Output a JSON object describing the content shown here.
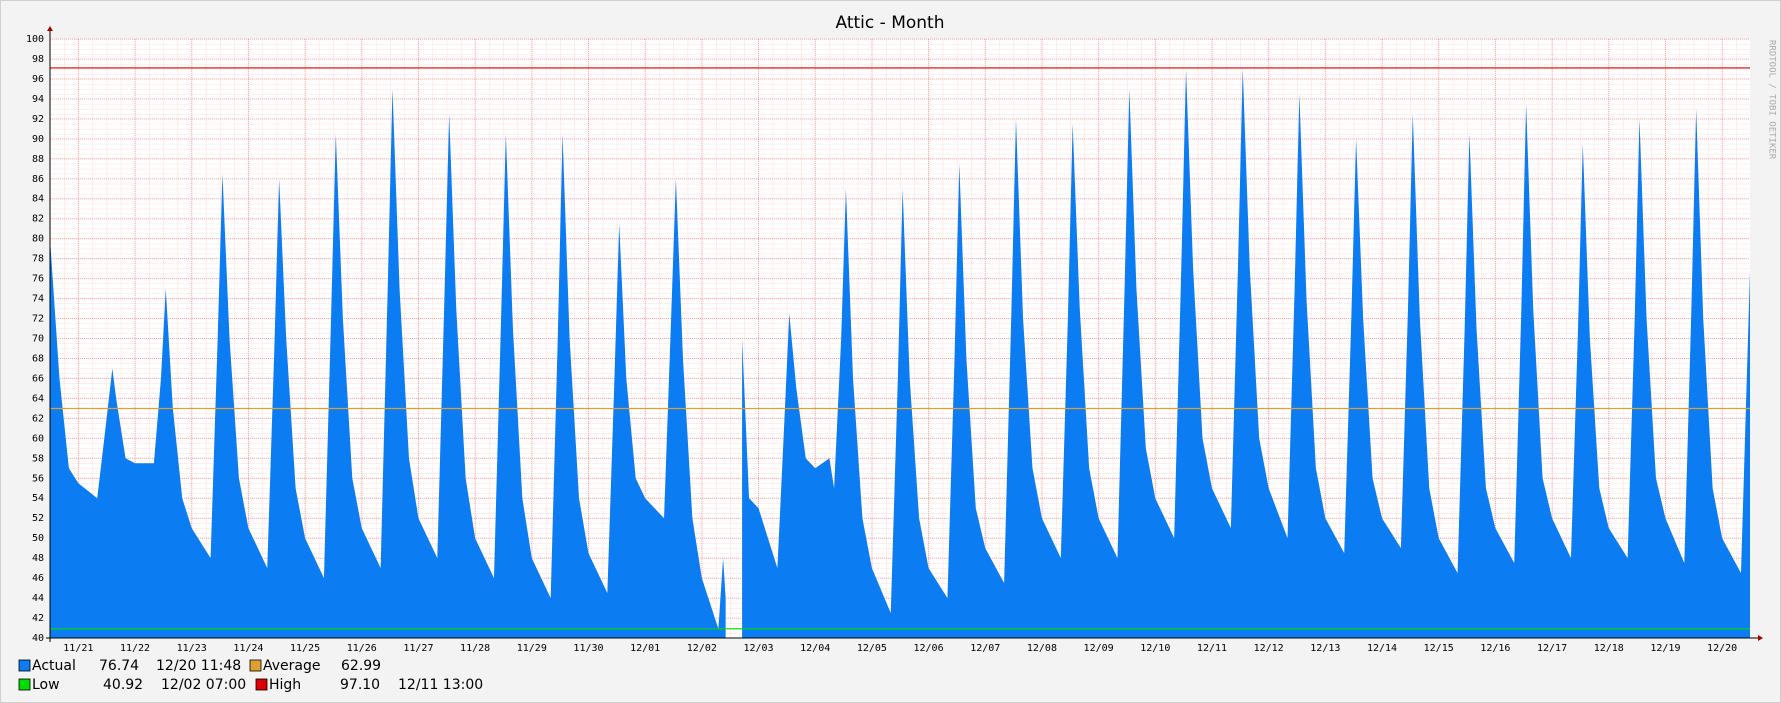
{
  "chart_data": {
    "type": "area",
    "title": "Attic - Month",
    "watermark": "RRDTOOL / TOBI OETIKER",
    "x": [
      -0.5,
      -0.333,
      -0.167,
      0,
      0.333,
      0.458,
      0.6,
      0.667,
      0.833,
      1,
      1.333,
      1.458,
      1.542,
      1.667,
      1.833,
      2,
      2.333,
      2.458,
      2.542,
      2.667,
      2.833,
      3,
      3.333,
      3.458,
      3.542,
      3.667,
      3.833,
      4,
      4.333,
      4.458,
      4.542,
      4.667,
      4.833,
      5,
      5.333,
      5.458,
      5.542,
      5.667,
      5.833,
      6,
      6.333,
      6.458,
      6.542,
      6.667,
      6.833,
      7,
      7.333,
      7.458,
      7.542,
      7.667,
      7.833,
      8,
      8.333,
      8.458,
      8.542,
      8.667,
      8.833,
      9,
      9.333,
      9.458,
      9.542,
      9.667,
      9.833,
      10,
      10.333,
      10.458,
      10.542,
      10.667,
      10.833,
      11,
      11.292,
      11.375,
      11.42,
      11.5,
      11.71,
      11.833,
      12,
      12.333,
      12.458,
      12.542,
      12.667,
      12.833,
      13,
      13.25,
      13.333,
      13.458,
      13.542,
      13.667,
      13.833,
      14,
      14.333,
      14.458,
      14.542,
      14.667,
      14.833,
      15,
      15.333,
      15.458,
      15.542,
      15.667,
      15.833,
      16,
      16.333,
      16.458,
      16.542,
      16.667,
      16.833,
      17,
      17.333,
      17.458,
      17.542,
      17.667,
      17.833,
      18,
      18.333,
      18.458,
      18.542,
      18.667,
      18.833,
      19,
      19.333,
      19.458,
      19.542,
      19.667,
      19.833,
      20,
      20.333,
      20.458,
      20.542,
      20.667,
      20.833,
      21,
      21.333,
      21.458,
      21.542,
      21.667,
      21.833,
      22,
      22.333,
      22.458,
      22.542,
      22.667,
      22.833,
      23,
      23.333,
      23.458,
      23.542,
      23.667,
      23.833,
      24,
      24.333,
      24.458,
      24.542,
      24.667,
      24.833,
      25,
      25.333,
      25.458,
      25.542,
      25.667,
      25.833,
      26,
      26.333,
      26.458,
      26.542,
      26.667,
      26.833,
      27,
      27.333,
      27.458,
      27.542,
      27.667,
      27.833,
      28,
      28.333,
      28.458,
      28.542,
      28.667,
      28.833,
      29,
      29.333,
      29.492
    ],
    "series": [
      {
        "name": "Actual",
        "color": "#0c7cf2",
        "current_value": 76.74,
        "current_time": "12/20 11:48",
        "values": [
          80,
          66,
          57,
          55.5,
          54,
          60,
          67,
          64,
          58,
          57.5,
          57.5,
          66,
          75,
          63,
          54,
          51,
          48,
          70,
          86.5,
          70,
          56,
          51,
          47,
          69,
          86,
          70,
          55,
          50,
          46,
          72,
          90.5,
          72,
          56,
          51,
          47,
          75,
          95,
          75,
          58,
          52,
          48,
          74,
          92.5,
          73,
          56,
          50,
          46,
          72,
          90.5,
          71,
          54,
          48,
          44,
          70,
          90.5,
          70,
          54,
          48.5,
          44.5,
          66,
          81.5,
          66,
          56,
          54,
          52,
          72,
          86,
          68,
          52,
          46,
          40.92,
          48,
          44,
          null,
          70,
          54,
          53,
          47,
          62,
          72.5,
          65,
          58,
          57,
          58,
          55,
          70,
          85,
          66,
          52,
          47,
          42.5,
          66,
          85,
          66,
          52,
          47,
          44,
          68,
          87.5,
          68,
          53,
          49,
          45.5,
          72,
          92,
          72,
          57,
          52,
          48,
          72,
          91.5,
          73,
          57,
          52,
          48,
          75,
          95,
          75,
          59,
          54,
          50,
          77,
          97,
          77,
          60,
          55,
          51,
          77,
          97.1,
          77,
          60,
          55,
          50,
          75,
          94.5,
          74,
          57,
          52,
          48.5,
          72,
          90,
          72,
          56,
          52,
          49,
          73,
          92.5,
          72,
          55,
          50,
          46.5,
          71,
          90.5,
          71,
          55,
          51,
          47.5,
          73,
          93.5,
          73,
          56,
          52,
          48,
          71,
          89.5,
          70,
          55,
          51,
          48,
          72,
          92,
          72,
          56,
          52,
          47.5,
          73,
          93,
          72,
          55,
          50,
          46.5,
          76.74
        ]
      }
    ],
    "reference_lines": [
      {
        "name": "Average",
        "color": "#e0a030",
        "value": 62.99
      },
      {
        "name": "Low",
        "color": "#00dd00",
        "value": 40.92,
        "time": "12/02 07:00"
      },
      {
        "name": "High",
        "color": "#dd0000",
        "value": 97.1,
        "value_label": "97.10",
        "time": "12/11 13:00"
      }
    ],
    "xlim": [
      -0.5,
      29.492
    ],
    "xticks": [
      {
        "value": 0,
        "label": "11/21"
      },
      {
        "value": 1,
        "label": "11/22"
      },
      {
        "value": 2,
        "label": "11/23"
      },
      {
        "value": 3,
        "label": "11/24"
      },
      {
        "value": 4,
        "label": "11/25"
      },
      {
        "value": 5,
        "label": "11/26"
      },
      {
        "value": 6,
        "label": "11/27"
      },
      {
        "value": 7,
        "label": "11/28"
      },
      {
        "value": 8,
        "label": "11/29"
      },
      {
        "value": 9,
        "label": "11/30"
      },
      {
        "value": 10,
        "label": "12/01"
      },
      {
        "value": 11,
        "label": "12/02"
      },
      {
        "value": 12,
        "label": "12/03"
      },
      {
        "value": 13,
        "label": "12/04"
      },
      {
        "value": 14,
        "label": "12/05"
      },
      {
        "value": 15,
        "label": "12/06"
      },
      {
        "value": 16,
        "label": "12/07"
      },
      {
        "value": 17,
        "label": "12/08"
      },
      {
        "value": 18,
        "label": "12/09"
      },
      {
        "value": 19,
        "label": "12/10"
      },
      {
        "value": 20,
        "label": "12/11"
      },
      {
        "value": 21,
        "label": "12/12"
      },
      {
        "value": 22,
        "label": "12/13"
      },
      {
        "value": 23,
        "label": "12/14"
      },
      {
        "value": 24,
        "label": "12/15"
      },
      {
        "value": 25,
        "label": "12/16"
      },
      {
        "value": 26,
        "label": "12/17"
      },
      {
        "value": 27,
        "label": "12/18"
      },
      {
        "value": 28,
        "label": "12/19"
      },
      {
        "value": 29,
        "label": "12/20"
      }
    ],
    "ylim": [
      40,
      100
    ],
    "yticks": [
      40,
      42,
      44,
      46,
      48,
      50,
      52,
      54,
      56,
      58,
      60,
      62,
      64,
      66,
      68,
      70,
      72,
      74,
      76,
      78,
      80,
      82,
      84,
      86,
      88,
      90,
      92,
      94,
      96,
      98,
      100
    ],
    "grid": true
  }
}
